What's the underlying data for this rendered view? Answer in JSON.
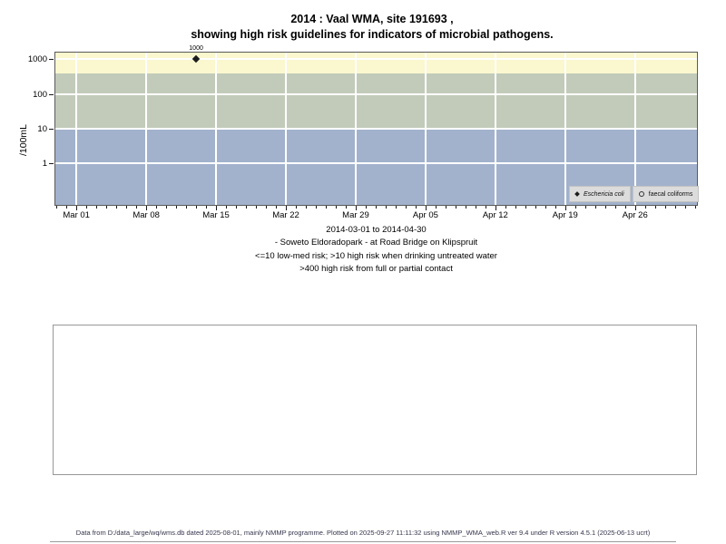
{
  "page": {
    "title_line1": "2014 : Vaal WMA, site 191693 ,",
    "title_line2": "showing high risk guidelines for indicators of microbial pathogens.",
    "footer": "Data from D:/data_large/wq/wms.db dated 2025-08-01, mainly NMMP programme. Plotted on 2025-09-27 11:11:32 using NMMP_WMA_web.R ver 9.4 under R version 4.5.1 (2025-06-13 ucrt)"
  },
  "chart_data": {
    "type": "scatter",
    "title": "2014 : Vaal WMA, site 191693 , showing high risk guidelines for indicators of microbial pathogens.",
    "xlabel": "",
    "ylabel": "/100mL",
    "y_scale": "log10",
    "ylim": [
      0.06,
      1660
    ],
    "y_ticks": [
      1000,
      100,
      10,
      1
    ],
    "xlim_days": [
      -2.2,
      62.3
    ],
    "x_minor_tick_days": [
      -2,
      62
    ],
    "x_ticks": [
      {
        "label": "Mar 01",
        "day": 0
      },
      {
        "label": "Mar 08",
        "day": 7
      },
      {
        "label": "Mar 15",
        "day": 14
      },
      {
        "label": "Mar 22",
        "day": 21
      },
      {
        "label": "Mar 29",
        "day": 28
      },
      {
        "label": "Apr 05",
        "day": 35
      },
      {
        "label": "Apr 12",
        "day": 42
      },
      {
        "label": "Apr 19",
        "day": 49
      },
      {
        "label": "Apr 26",
        "day": 56
      }
    ],
    "grid": "white major gridlines over risk bands",
    "legend_position": "bottom-right inside panel",
    "risk_bands": [
      {
        "label": ">400 high risk from full or partial contact",
        "from": 400,
        "to": 1660,
        "color": "#fbf7ce"
      },
      {
        "label": ">10 high risk when drinking untreated water",
        "from": 10,
        "to": 400,
        "color": "#c2cbba"
      },
      {
        "label": "<=10 low-med risk",
        "from": 0.06,
        "to": 10,
        "color": "#a2b2cd"
      }
    ],
    "series": [
      {
        "name": "Eschericia coli",
        "marker": "filled-diamond",
        "points": [
          {
            "date": "2014-03-13",
            "day": 12,
            "value": 1000,
            "label": "1000"
          }
        ]
      },
      {
        "name": "faecal coliforms",
        "marker": "open-circle",
        "points": []
      }
    ],
    "caption": [
      "2014-03-01 to 2014-04-30",
      "- Soweto Eldoradopark - at Road Bridge on Klipspruit",
      "<=10 low-med risk; >10 high risk when drinking untreated water",
      ">400 high risk from full or partial contact"
    ]
  }
}
